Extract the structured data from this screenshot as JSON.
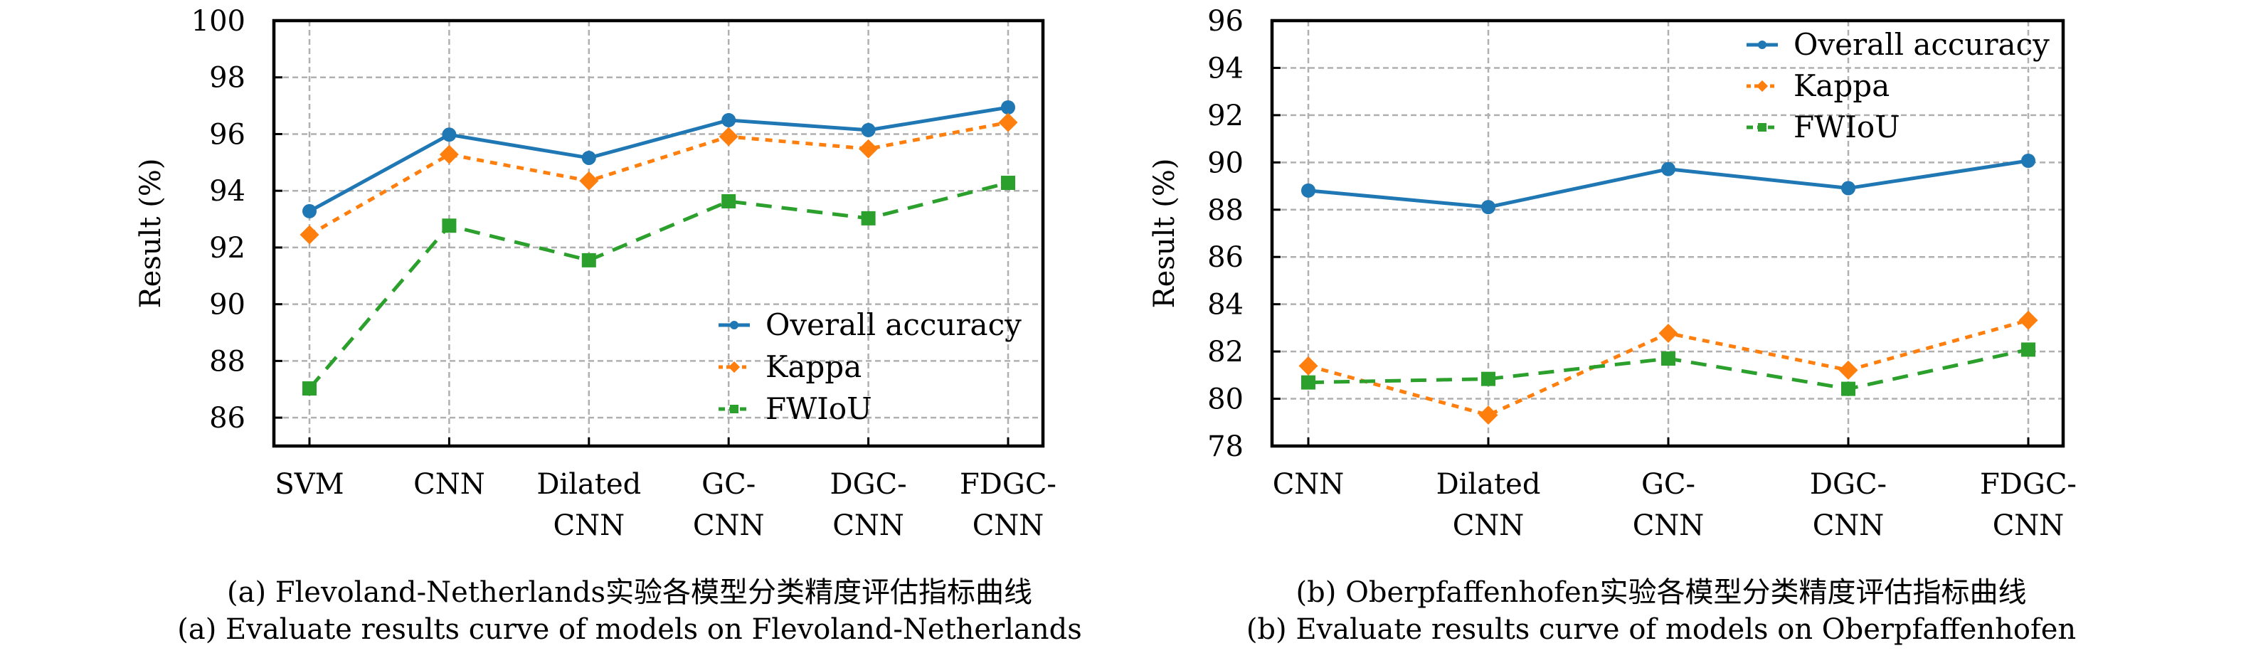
{
  "colors": {
    "overall_accuracy": "#1f77b4",
    "kappa": "#ff7f0e",
    "fwiou": "#2ca02c",
    "grid": "#b0b0b0"
  },
  "chart_data": [
    {
      "type": "line",
      "title": "",
      "xlabel": "",
      "ylabel": "Result (%)",
      "categories": [
        [
          "SVM"
        ],
        [
          "CNN"
        ],
        [
          "Dilated",
          "CNN"
        ],
        [
          "GC-",
          "CNN"
        ],
        [
          "DGC-",
          "CNN"
        ],
        [
          "FDGC-",
          "CNN"
        ]
      ],
      "ylim": [
        85,
        100
      ],
      "yticks": [
        86,
        88,
        90,
        92,
        94,
        96,
        98,
        100
      ],
      "grid": true,
      "legend_position": "lower-right",
      "series": [
        {
          "name": "Overall accuracy",
          "key": "overall_accuracy",
          "marker": "circle",
          "linestyle": "solid",
          "values": [
            93.28,
            95.98,
            95.16,
            96.49,
            96.14,
            96.94
          ]
        },
        {
          "name": "Kappa",
          "key": "kappa",
          "marker": "diamond",
          "linestyle": "dotted",
          "values": [
            92.45,
            95.28,
            94.35,
            95.91,
            95.48,
            96.41
          ]
        },
        {
          "name": "FWIoU",
          "key": "fwiou",
          "marker": "square",
          "linestyle": "dashed",
          "values": [
            87.03,
            92.77,
            91.55,
            93.63,
            93.03,
            94.28
          ]
        }
      ],
      "caption_cn": "(a) Flevoland-Netherlands实验各模型分类精度评估指标曲线",
      "caption_en": "(a) Evaluate results curve of models on Flevoland-Netherlands"
    },
    {
      "type": "line",
      "title": "",
      "xlabel": "",
      "ylabel": "Result (%)",
      "categories": [
        [
          "CNN"
        ],
        [
          "Dilated",
          "CNN"
        ],
        [
          "GC-",
          "CNN"
        ],
        [
          "DGC-",
          "CNN"
        ],
        [
          "FDGC-",
          "CNN"
        ]
      ],
      "ylim": [
        78,
        96
      ],
      "yticks": [
        78,
        80,
        82,
        84,
        86,
        88,
        90,
        92,
        94,
        96
      ],
      "grid": true,
      "legend_position": "upper-right",
      "series": [
        {
          "name": "Overall accuracy",
          "key": "overall_accuracy",
          "marker": "circle",
          "linestyle": "solid",
          "values": [
            88.81,
            88.11,
            89.72,
            88.91,
            90.07
          ]
        },
        {
          "name": "Kappa",
          "key": "kappa",
          "marker": "diamond",
          "linestyle": "dotted",
          "values": [
            81.39,
            79.31,
            82.77,
            81.21,
            83.32
          ]
        },
        {
          "name": "FWIoU",
          "key": "fwiou",
          "marker": "square",
          "linestyle": "dashed",
          "values": [
            80.69,
            80.84,
            81.7,
            80.42,
            82.08
          ]
        }
      ],
      "caption_cn": "(b) Oberpfaffenhofen实验各模型分类精度评估指标曲线",
      "caption_en": "(b) Evaluate results curve of models on Oberpfaffenhofen"
    }
  ]
}
